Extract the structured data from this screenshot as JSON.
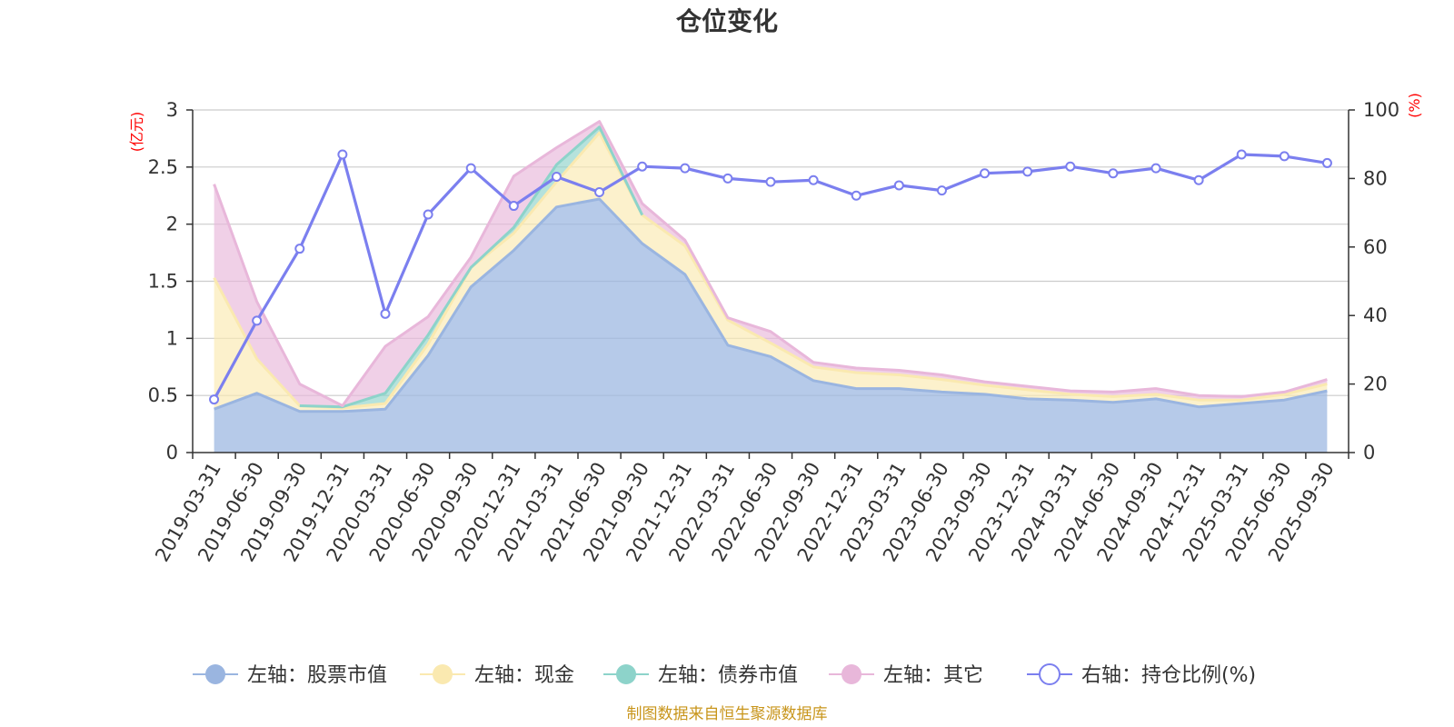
{
  "chart_data": {
    "type": "area",
    "title": "仓位变化",
    "left_axis_label": "(亿元)",
    "right_axis_label": "(%)",
    "left_ylim": [
      0,
      3
    ],
    "left_ticks": [
      "0",
      "0.5",
      "1",
      "1.5",
      "2",
      "2.5",
      "3"
    ],
    "right_ylim": [
      0,
      100
    ],
    "right_ticks": [
      "0",
      "20",
      "40",
      "60",
      "80",
      "100"
    ],
    "categories": [
      "2019-03-31",
      "2019-06-30",
      "2019-09-30",
      "2019-12-31",
      "2020-03-31",
      "2020-06-30",
      "2020-09-30",
      "2020-12-31",
      "2021-03-31",
      "2021-06-30",
      "2021-09-30",
      "2021-12-31",
      "2022-03-31",
      "2022-06-30",
      "2022-09-30",
      "2022-12-31",
      "2023-03-31",
      "2023-06-30",
      "2023-09-30",
      "2023-12-31",
      "2024-03-31",
      "2024-06-30",
      "2024-09-30",
      "2024-12-31",
      "2025-03-31",
      "2025-06-30",
      "2025-09-30"
    ],
    "series": [
      {
        "name": "左轴：股票市值",
        "axis": "left",
        "kind": "stacked-area",
        "color": "#9ab5e0",
        "values": [
          0.38,
          0.52,
          0.36,
          0.36,
          0.38,
          0.85,
          1.45,
          1.77,
          2.15,
          2.22,
          1.83,
          1.56,
          0.94,
          0.84,
          0.63,
          0.56,
          0.56,
          0.53,
          0.51,
          0.47,
          0.46,
          0.44,
          0.47,
          0.4,
          0.43,
          0.46,
          0.54
        ]
      },
      {
        "name": "左轴：现金",
        "axis": "left",
        "kind": "stacked-area",
        "color": "#fae9b0",
        "values": [
          1.15,
          0.3,
          0.05,
          0.03,
          0.05,
          0.1,
          0.17,
          0.15,
          0.22,
          0.58,
          0.25,
          0.25,
          0.22,
          0.12,
          0.12,
          0.14,
          0.12,
          0.11,
          0.08,
          0.08,
          0.05,
          0.05,
          0.04,
          0.06,
          0.03,
          0.05,
          0.06
        ]
      },
      {
        "name": "左轴：债券市值",
        "axis": "left",
        "kind": "stacked-area",
        "color": "#8dd3ca",
        "values": [
          0,
          0,
          0,
          0.01,
          0.09,
          0.08,
          0,
          0.05,
          0.15,
          0.05,
          0,
          0,
          0,
          0,
          0,
          0,
          0,
          0,
          0,
          0,
          0,
          0,
          0,
          0,
          0,
          0,
          0
        ]
      },
      {
        "name": "左轴：其它",
        "axis": "left",
        "kind": "stacked-area",
        "color": "#e8b7da",
        "values": [
          0.82,
          0.5,
          0.19,
          0.01,
          0.41,
          0.16,
          0.09,
          0.45,
          0.15,
          0.05,
          0.1,
          0.05,
          0.02,
          0.1,
          0.04,
          0.04,
          0.04,
          0.04,
          0.03,
          0.03,
          0.03,
          0.04,
          0.05,
          0.04,
          0.03,
          0.02,
          0.04
        ]
      },
      {
        "name": "右轴：持仓比例(%)",
        "axis": "right",
        "kind": "line",
        "color": "#7b7fef",
        "values": [
          15.5,
          38.5,
          59.5,
          87,
          40.5,
          69.5,
          83,
          72,
          80.5,
          76,
          83.5,
          83,
          80,
          79,
          79.5,
          75,
          78,
          76.5,
          81.5,
          82,
          83.5,
          81.5,
          83,
          79.5,
          87,
          86.5,
          84.5
        ]
      }
    ]
  },
  "source_note": "制图数据来自恒生聚源数据库"
}
